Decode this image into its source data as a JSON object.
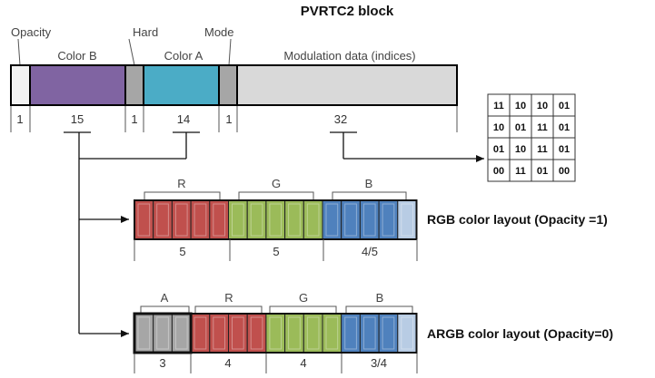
{
  "title": "PVRTC2 block",
  "block": {
    "labels": {
      "opacity": "Opacity",
      "color_b": "Color B",
      "hard": "Hard",
      "color_a": "Color A",
      "mode": "Mode",
      "modulation": "Modulation data (indices)"
    },
    "bits": {
      "opacity": "1",
      "color_b": "15",
      "hard": "1",
      "color_a": "14",
      "mode": "1",
      "modulation": "32"
    },
    "colors": {
      "opacity": "#f2f2f2",
      "color_b": "#8064a2",
      "hard": "#a6a6a6",
      "color_a": "#4bacc6",
      "mode": "#a6a6a6",
      "modulation": "#d9d9d9"
    }
  },
  "matrix": [
    [
      "11",
      "10",
      "10",
      "01"
    ],
    [
      "10",
      "01",
      "11",
      "01"
    ],
    [
      "01",
      "10",
      "11",
      "01"
    ],
    [
      "00",
      "11",
      "01",
      "00"
    ]
  ],
  "rgb_layout": {
    "caption": "RGB color layout (Opacity =1)",
    "channels": [
      "R",
      "G",
      "B"
    ],
    "bits": [
      "5",
      "5",
      "4/5"
    ],
    "colors": {
      "r": "#c0504d",
      "g": "#9bbb59",
      "b": "#4f81bd",
      "b_light": "#b8cce4"
    }
  },
  "argb_layout": {
    "caption": "ARGB color layout (Opacity=0)",
    "channels": [
      "A",
      "R",
      "G",
      "B"
    ],
    "bits": [
      "3",
      "4",
      "4",
      "3/4"
    ],
    "colors": {
      "a": "#a6a6a6",
      "r": "#c0504d",
      "g": "#9bbb59",
      "b": "#4f81bd",
      "b_light": "#b8cce4"
    }
  }
}
